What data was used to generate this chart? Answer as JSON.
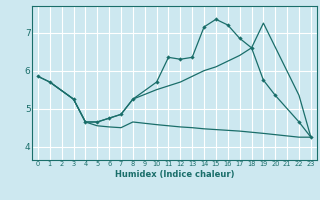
{
  "xlabel": "Humidex (Indice chaleur)",
  "background_color": "#cde8f0",
  "grid_color": "#ffffff",
  "line_color": "#1a6e6a",
  "xlim": [
    -0.5,
    23.5
  ],
  "ylim": [
    3.65,
    7.7
  ],
  "xticks": [
    0,
    1,
    2,
    3,
    4,
    5,
    6,
    7,
    8,
    9,
    10,
    11,
    12,
    13,
    14,
    15,
    16,
    17,
    18,
    19,
    20,
    21,
    22,
    23
  ],
  "yticks": [
    4,
    5,
    6,
    7
  ],
  "line1_x": [
    0,
    1,
    3,
    4,
    5,
    6,
    7,
    8,
    10,
    11,
    12,
    13,
    14,
    15,
    16,
    17,
    18,
    19,
    20,
    22,
    23
  ],
  "line1_y": [
    5.85,
    5.7,
    5.25,
    4.65,
    4.65,
    4.75,
    4.85,
    5.25,
    5.7,
    6.35,
    6.3,
    6.35,
    7.15,
    7.35,
    7.2,
    6.85,
    6.6,
    5.75,
    5.35,
    4.65,
    4.25
  ],
  "line2_x": [
    0,
    1,
    3,
    4,
    5,
    6,
    7,
    8,
    10,
    11,
    12,
    13,
    14,
    15,
    16,
    17,
    18,
    19,
    22,
    23
  ],
  "line2_y": [
    5.85,
    5.7,
    5.25,
    4.65,
    4.65,
    4.75,
    4.85,
    5.25,
    5.5,
    5.6,
    5.7,
    5.85,
    6.0,
    6.1,
    6.25,
    6.4,
    6.6,
    7.25,
    5.35,
    4.25
  ],
  "line3_x": [
    1,
    3,
    4,
    5,
    6,
    7,
    8,
    10,
    11,
    12,
    13,
    14,
    15,
    16,
    17,
    18,
    19,
    22,
    23
  ],
  "line3_y": [
    5.7,
    5.25,
    4.65,
    4.55,
    4.52,
    4.5,
    4.65,
    4.58,
    4.55,
    4.52,
    4.5,
    4.47,
    4.45,
    4.43,
    4.41,
    4.38,
    4.35,
    4.25,
    4.25
  ]
}
